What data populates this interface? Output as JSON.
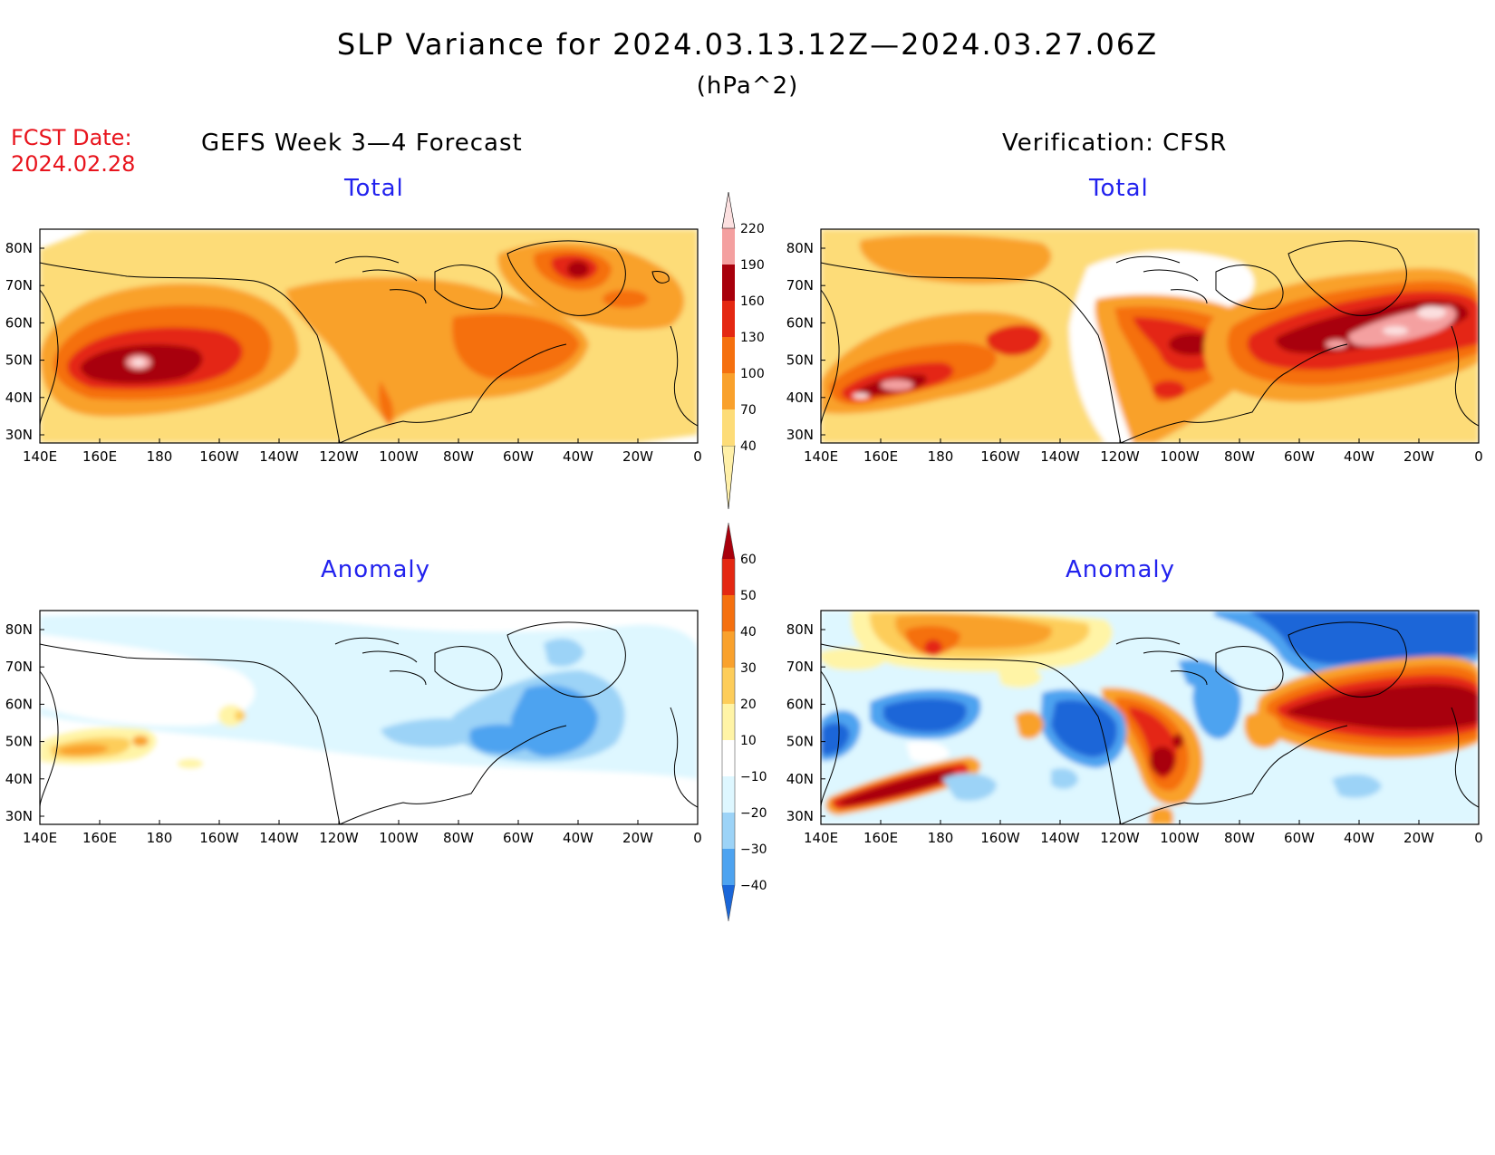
{
  "title": "SLP Variance for 2024.03.13.12Z—2024.03.27.06Z",
  "units": "(hPa^2)",
  "fcst_date_label": "FCST Date:",
  "fcst_date_value": "2024.02.28",
  "left_title": "GEFS Week 3—4 Forecast",
  "right_title": "Verification: CFSR",
  "panels": {
    "top_left_label": "Total",
    "top_right_label": "Total",
    "bottom_left_label": "Anomaly",
    "bottom_right_label": "Anomaly"
  },
  "axes": {
    "lon_ticks": [
      "140E",
      "160E",
      "180",
      "160W",
      "140W",
      "120W",
      "100W",
      "80W",
      "60W",
      "40W",
      "20W",
      "0"
    ],
    "lat_ticks": [
      "80N",
      "70N",
      "60N",
      "50N",
      "40N",
      "30N"
    ]
  },
  "colorbars": {
    "total": {
      "labels": [
        "40",
        "70",
        "100",
        "130",
        "160",
        "190",
        "220"
      ],
      "colors": [
        "#fff0a8",
        "#fddc78",
        "#f9a12c",
        "#f5700f",
        "#e42812",
        "#a8000c",
        "#f4a0a0",
        "#fce0e0"
      ]
    },
    "anomaly": {
      "labels": [
        "60",
        "50",
        "40",
        "30",
        "20",
        "10",
        "−10",
        "−20",
        "−30",
        "−40"
      ],
      "colors": [
        "#a8000c",
        "#e42812",
        "#f5700f",
        "#f9a12c",
        "#fdcd5a",
        "#fff4a6",
        "#ffffff",
        "#def7ff",
        "#9cd3f7",
        "#4da3f0",
        "#1a66d8"
      ]
    }
  },
  "colors": {
    "fcst_date": "#e8141d",
    "panel_label": "#2222ee"
  }
}
